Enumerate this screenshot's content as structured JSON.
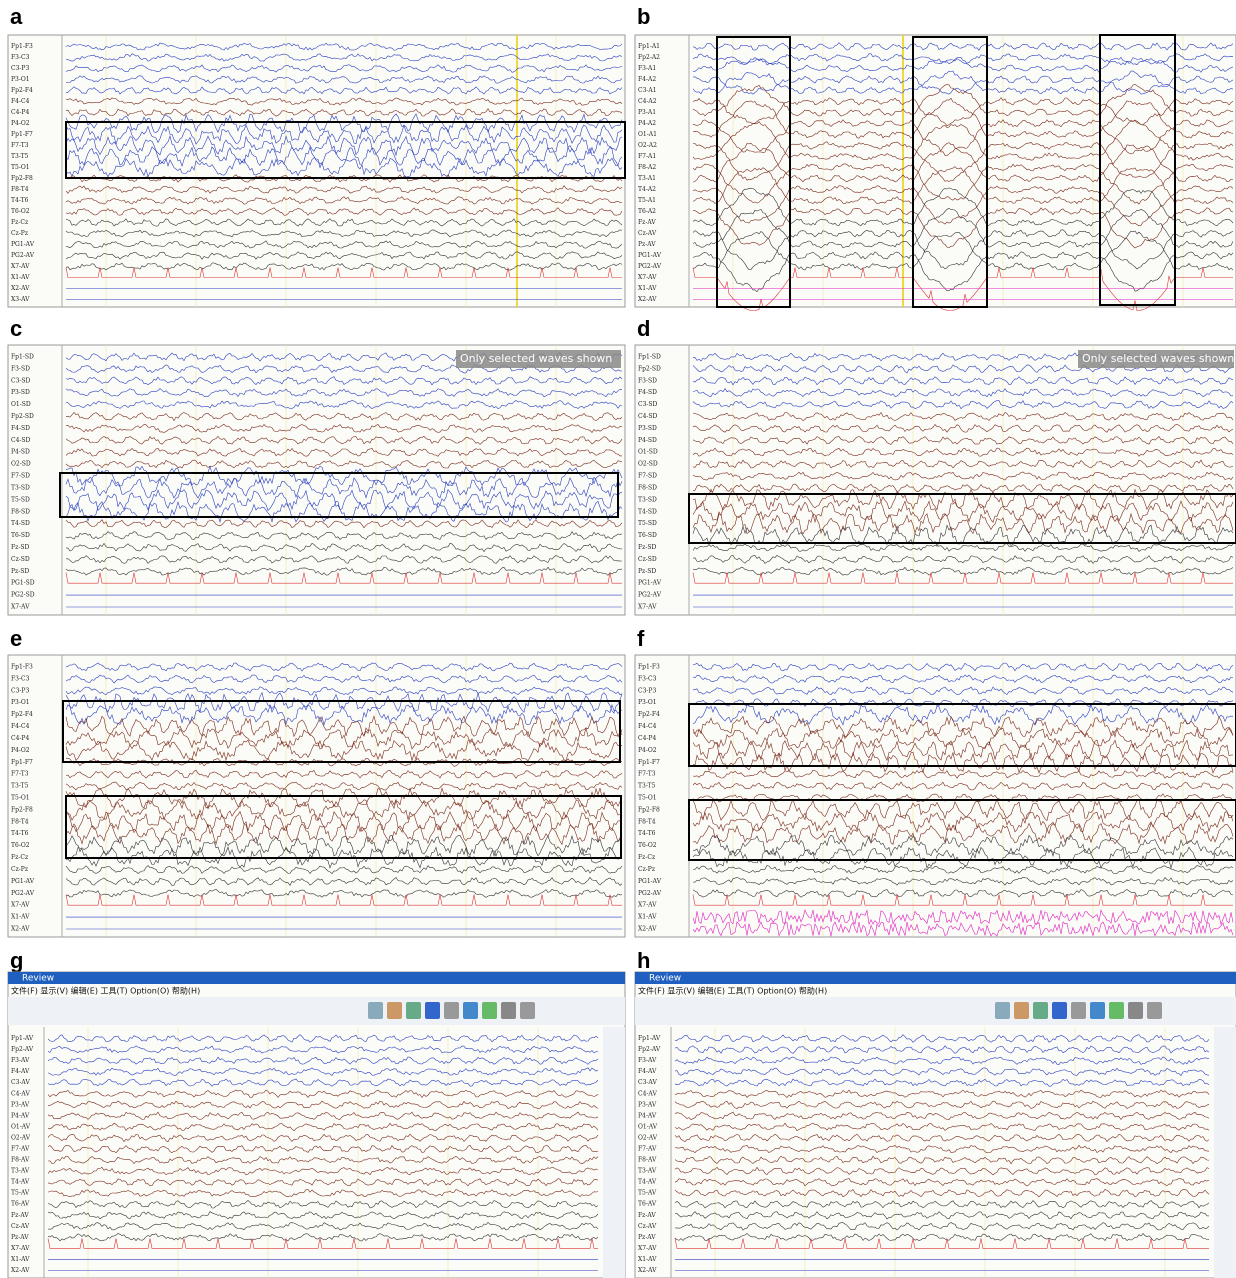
{
  "panels": [
    {
      "label": "a",
      "channels": [
        "Fp1-F3",
        "F3-C3",
        "C3-P3",
        "P3-O1",
        "Fp2-F4",
        "F4-C4",
        "C4-P4",
        "P4-O2",
        "Fp1-F7",
        "F7-T3",
        "T3-T5",
        "T5-O1",
        "Fp2-F8",
        "F8-T4",
        "T4-T6",
        "T6-O2",
        "Fz-Cz",
        "Cz-Pz",
        "PG1-AV",
        "PG2-AV",
        "X7-AV",
        "X1-AV",
        "X2-AV",
        "X3-AV"
      ]
    },
    {
      "label": "b",
      "channels": [
        "Fp1-A1",
        "Fp2-A2",
        "F3-A1",
        "F4-A2",
        "C3-A1",
        "C4-A2",
        "P3-A1",
        "P4-A2",
        "O1-A1",
        "O2-A2",
        "F7-A1",
        "F8-A2",
        "T3-A1",
        "T4-A2",
        "T5-A1",
        "T6-A2",
        "Fz-AV",
        "Cz-AV",
        "Pz-AV",
        "PG1-AV",
        "PG2-AV",
        "X7-AV",
        "X1-AV",
        "X2-AV"
      ]
    },
    {
      "label": "c",
      "overlay": "Only selected waves shown",
      "channels": [
        "Fp1-SD",
        "F3-SD",
        "C3-SD",
        "P3-SD",
        "O1-SD",
        "Fp2-SD",
        "F4-SD",
        "C4-SD",
        "P4-SD",
        "O2-SD",
        "F7-SD",
        "T3-SD",
        "T5-SD",
        "F8-SD",
        "T4-SD",
        "T6-SD",
        "Fz-SD",
        "Cz-SD",
        "Pz-SD",
        "PG1-SD",
        "PG2-SD",
        "X7-AV"
      ]
    },
    {
      "label": "d",
      "overlay": "Only selected waves shown",
      "channels": [
        "Fp1-SD",
        "Fp2-SD",
        "F3-SD",
        "F4-SD",
        "C3-SD",
        "C4-SD",
        "P3-SD",
        "P4-SD",
        "O1-SD",
        "O2-SD",
        "F7-SD",
        "F8-SD",
        "T3-SD",
        "T4-SD",
        "T5-SD",
        "T6-SD",
        "Fz-SD",
        "Cz-SD",
        "Pz-SD",
        "PG1-AV",
        "PG2-AV",
        "X7-AV"
      ]
    },
    {
      "label": "e",
      "channels": [
        "Fp1-F3",
        "F3-C3",
        "C3-P3",
        "P3-O1",
        "Fp2-F4",
        "F4-C4",
        "C4-P4",
        "P4-O2",
        "Fp1-F7",
        "F7-T3",
        "T3-T5",
        "T5-O1",
        "Fp2-F8",
        "F8-T4",
        "T4-T6",
        "T6-O2",
        "Fz-Cz",
        "Cz-Pz",
        "PG1-AV",
        "PG2-AV",
        "X7-AV",
        "X1-AV",
        "X2-AV"
      ]
    },
    {
      "label": "f",
      "channels": [
        "Fp1-F3",
        "F3-C3",
        "C3-P3",
        "P3-O1",
        "Fp2-F4",
        "F4-C4",
        "C4-P4",
        "P4-O2",
        "Fp1-F7",
        "F7-T3",
        "T3-T5",
        "T5-O1",
        "Fp2-F8",
        "F8-T4",
        "T4-T6",
        "T6-O2",
        "Fz-Cz",
        "Cz-Pz",
        "PG1-AV",
        "PG2-AV",
        "X7-AV",
        "X1-AV",
        "X2-AV"
      ]
    },
    {
      "label": "g",
      "title": "Review",
      "menu": "文件(F) 显示(V) 编辑(E) 工具(T) Option(O) 帮助(H)",
      "channels": [
        "Fp1-AV",
        "Fp2-AV",
        "F3-AV",
        "F4-AV",
        "C3-AV",
        "C4-AV",
        "P3-AV",
        "P4-AV",
        "O1-AV",
        "O2-AV",
        "F7-AV",
        "F8-AV",
        "T3-AV",
        "T4-AV",
        "T5-AV",
        "T6-AV",
        "Fz-AV",
        "Cz-AV",
        "Pz-AV",
        "X7-AV",
        "X1-AV",
        "X2-AV"
      ]
    },
    {
      "label": "h",
      "title": "Review",
      "menu": "文件(F) 显示(V) 编辑(E) 工具(T) Option(O) 帮助(H)",
      "channels": [
        "Fp1-AV",
        "Fp2-AV",
        "F3-AV",
        "F4-AV",
        "C3-AV",
        "C4-AV",
        "P3-AV",
        "P4-AV",
        "O1-AV",
        "O2-AV",
        "F7-AV",
        "F8-AV",
        "T3-AV",
        "T4-AV",
        "T5-AV",
        "T6-AV",
        "Fz-AV",
        "Cz-AV",
        "Pz-AV",
        "X7-AV",
        "X1-AV",
        "X2-AV"
      ]
    }
  ]
}
